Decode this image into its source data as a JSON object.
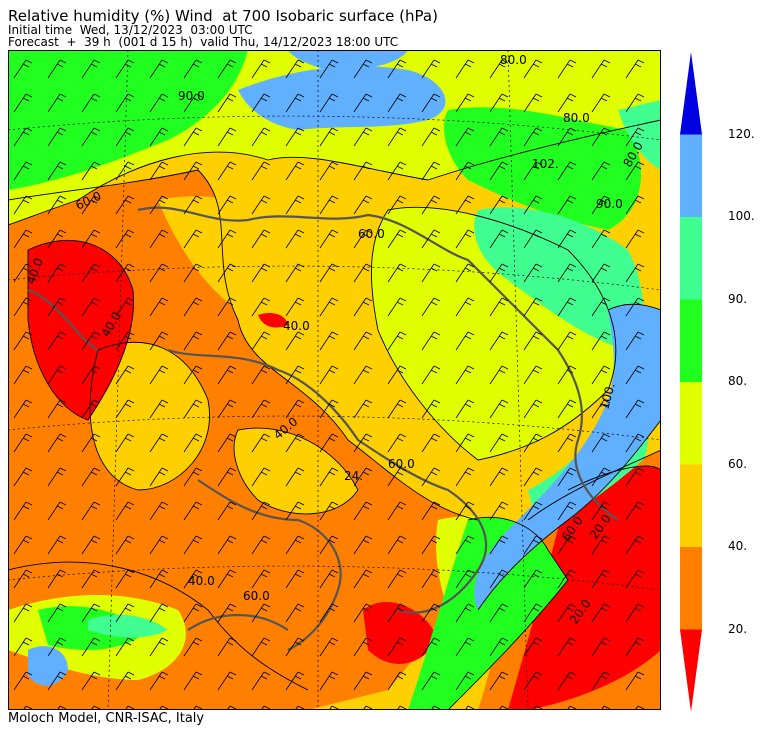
{
  "header": {
    "title": "Relative humidity (%) Wind  at 700 Isobaric surface (hPa)",
    "initial_time": "Initial time  Wed, 13/12/2023  03:00 UTC",
    "forecast": "Forecast  +  39 h  (001 d 15 h)  valid Thu, 14/12/2023 18:00 UTC"
  },
  "footer": {
    "credit": "Moloch Model, CNR-ISAC, Italy"
  },
  "legend": {
    "bands": [
      {
        "color": "#ff0000",
        "label": "20."
      },
      {
        "color": "#ff8000",
        "label": "40."
      },
      {
        "color": "#ffd000",
        "label": "60."
      },
      {
        "color": "#e0ff00",
        "label": "80."
      },
      {
        "color": "#20ff20",
        "label": "90."
      },
      {
        "color": "#40ff90",
        "label": "100."
      },
      {
        "color": "#60b0ff",
        "label": "120."
      },
      {
        "color": "#0000e0",
        "label": ""
      }
    ]
  },
  "map": {
    "contour_labels": [
      {
        "id": "c1",
        "text": "80.0"
      },
      {
        "id": "c2",
        "text": "80.0"
      },
      {
        "id": "c3",
        "text": "80.0"
      },
      {
        "id": "c4",
        "text": "90.0"
      },
      {
        "id": "c5",
        "text": "102."
      },
      {
        "id": "c6",
        "text": "90.0"
      },
      {
        "id": "c7",
        "text": "60.0"
      },
      {
        "id": "c8",
        "text": "40.0"
      },
      {
        "id": "c9",
        "text": "40.0"
      },
      {
        "id": "c10",
        "text": "40.0"
      },
      {
        "id": "c11",
        "text": "60.0"
      },
      {
        "id": "c12",
        "text": "24."
      },
      {
        "id": "c13",
        "text": "40.0"
      },
      {
        "id": "c14",
        "text": "60.0"
      },
      {
        "id": "c15",
        "text": "40.0"
      },
      {
        "id": "c16",
        "text": "60.0"
      },
      {
        "id": "c17",
        "text": "60.0"
      },
      {
        "id": "c18",
        "text": "20.0"
      },
      {
        "id": "c19",
        "text": "20.0"
      },
      {
        "id": "c20",
        "text": "100."
      }
    ]
  }
}
